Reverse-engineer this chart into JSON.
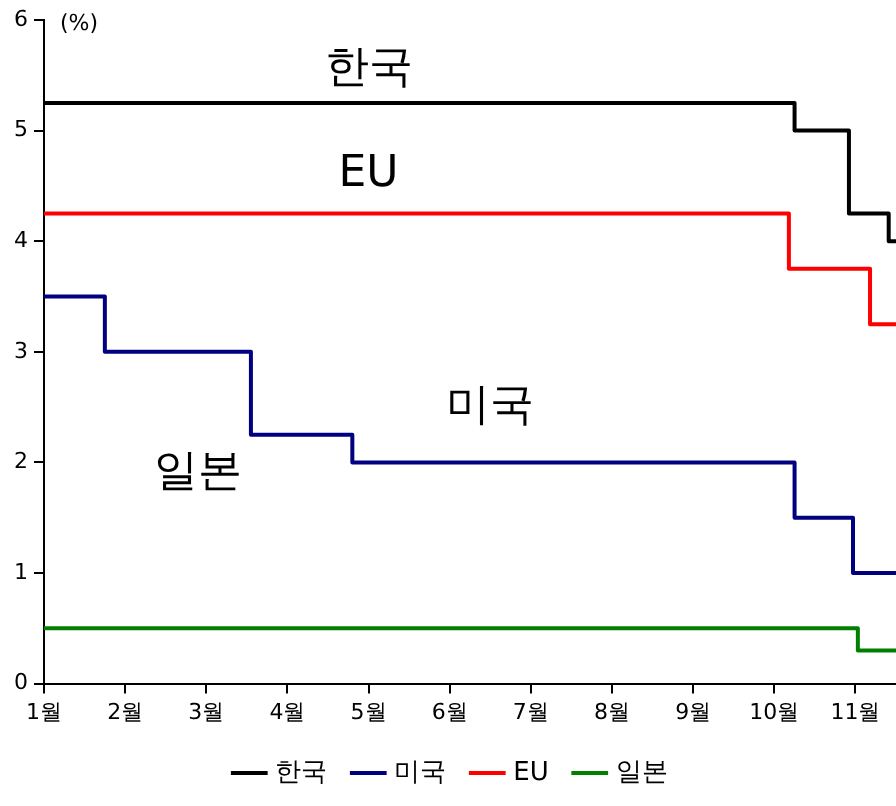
{
  "chart_data": {
    "type": "step",
    "ylabel": "(%)",
    "xlim": [
      1,
      11.5
    ],
    "ylim": [
      0,
      6
    ],
    "yticks": [
      0,
      1,
      2,
      3,
      4,
      5,
      6
    ],
    "xticks": [
      {
        "value": 1,
        "label": "1월"
      },
      {
        "value": 2,
        "label": "2월"
      },
      {
        "value": 3,
        "label": "3월"
      },
      {
        "value": 4,
        "label": "4월"
      },
      {
        "value": 5,
        "label": "5월"
      },
      {
        "value": 6,
        "label": "6월"
      },
      {
        "value": 7,
        "label": "7월"
      },
      {
        "value": 8,
        "label": "8월"
      },
      {
        "value": 9,
        "label": "9월"
      },
      {
        "value": 10,
        "label": "10월"
      },
      {
        "value": 11,
        "label": "11월"
      }
    ],
    "grid": false,
    "legend": "bottom",
    "marker": "none",
    "line_style": "solid",
    "series": [
      {
        "name": "한국",
        "color": "#000000",
        "x": [
          1,
          10.25,
          10.92,
          11.41,
          11.5
        ],
        "values": [
          5.25,
          5.0,
          4.25,
          4.0,
          4.0
        ]
      },
      {
        "name": "미국",
        "color": "#000080",
        "x": [
          1,
          1.75,
          3.55,
          4.8,
          10.25,
          10.97,
          11.5
        ],
        "values": [
          3.5,
          3.0,
          2.25,
          2.0,
          1.5,
          1.0,
          1.0
        ]
      },
      {
        "name": "EU",
        "color": "#ff0000",
        "x": [
          1,
          10.18,
          11.18,
          11.5
        ],
        "values": [
          4.25,
          3.75,
          3.25,
          3.25
        ]
      },
      {
        "name": "일본",
        "color": "#008000",
        "x": [
          1,
          11.03,
          11.5
        ],
        "values": [
          0.5,
          0.3,
          0.3
        ]
      }
    ]
  }
}
